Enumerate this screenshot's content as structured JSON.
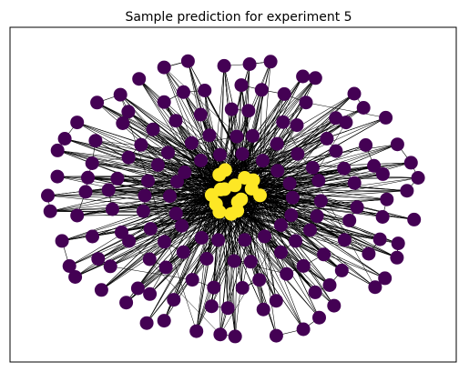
{
  "figure": {
    "title": "Sample prediction for experiment 5"
  },
  "graph": {
    "outer_node_count": 150,
    "inner_node_count": 16,
    "colors": {
      "outer_node": "#440154",
      "inner_node": "#fde725",
      "edge": "#000000",
      "frame": "#000000",
      "background": "#ffffff"
    },
    "legend": "none",
    "axes_ticks": "none"
  }
}
